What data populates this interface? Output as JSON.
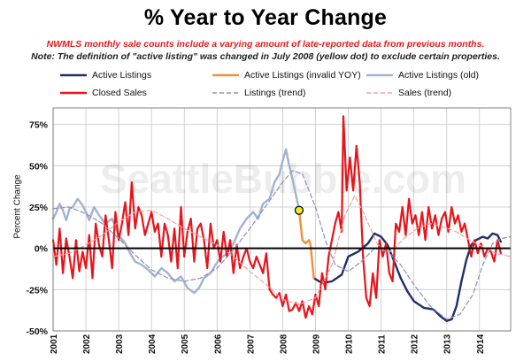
{
  "title": "% Year to Year Change",
  "subtitle_red": "NWMLS monthly sale counts include a varying amount of late-reported  data from previous months.",
  "subtitle_note": "Note: The definition of \"active listing\" was changed in July 2008 (yellow dot) to exclude certain properties.",
  "watermark": "SeattleBubble.com",
  "colors": {
    "active": "#1f2f6b",
    "invalid": "#f0913a",
    "old": "#9fb4cf",
    "closed": "#e8141b",
    "listings_trend": "#8f8fbf",
    "sales_trend": "#f3a0a0",
    "marker": "#f2ea1c",
    "grid": "#c8c8c8"
  },
  "chart_data": {
    "type": "line",
    "ylabel": "Percent Change",
    "ylim": [
      -50,
      85
    ],
    "yticks": [
      75,
      50,
      25,
      0,
      -25,
      -50
    ],
    "ytick_labels": [
      "75%",
      "50%",
      "25%",
      "0%",
      "-25%",
      "-50%"
    ],
    "xlim": [
      2001.0,
      2014.95
    ],
    "xtick_labels": [
      "2001",
      "2002",
      "2003",
      "2004",
      "2005",
      "2006",
      "2007",
      "2008",
      "2009",
      "2010",
      "2011",
      "2012",
      "2013",
      "2014"
    ],
    "marker": {
      "x": 2008.5,
      "y": 23,
      "note": "July 2008"
    },
    "series": [
      {
        "name": "Active Listings",
        "key": "active",
        "points": [
          [
            2008.95,
            -18
          ],
          [
            2009.2,
            -21
          ],
          [
            2009.5,
            -20
          ],
          [
            2009.8,
            -16
          ],
          [
            2010.0,
            -5
          ],
          [
            2010.3,
            -2
          ],
          [
            2010.6,
            3
          ],
          [
            2010.8,
            9
          ],
          [
            2011.0,
            7
          ],
          [
            2011.2,
            2
          ],
          [
            2011.4,
            -8
          ],
          [
            2011.6,
            -18
          ],
          [
            2011.8,
            -26
          ],
          [
            2012.0,
            -32
          ],
          [
            2012.3,
            -36
          ],
          [
            2012.6,
            -37
          ],
          [
            2012.8,
            -41
          ],
          [
            2013.0,
            -44
          ],
          [
            2013.15,
            -43
          ],
          [
            2013.3,
            -35
          ],
          [
            2013.45,
            -20
          ],
          [
            2013.6,
            -7
          ],
          [
            2013.75,
            2
          ],
          [
            2013.9,
            5
          ],
          [
            2014.1,
            7
          ],
          [
            2014.25,
            6
          ],
          [
            2014.4,
            9
          ],
          [
            2014.55,
            8
          ],
          [
            2014.65,
            4
          ]
        ]
      },
      {
        "name": "Active Listings (invalid YOY)",
        "key": "invalid",
        "points": [
          [
            2008.5,
            23
          ],
          [
            2008.55,
            14
          ],
          [
            2008.6,
            5
          ],
          [
            2008.7,
            3
          ],
          [
            2008.8,
            5
          ],
          [
            2008.85,
            2
          ],
          [
            2008.95,
            -18
          ]
        ]
      },
      {
        "name": "Active Listings (old)",
        "key": "old",
        "points": [
          [
            2001.0,
            18
          ],
          [
            2001.1,
            22
          ],
          [
            2001.2,
            27
          ],
          [
            2001.3,
            23
          ],
          [
            2001.4,
            17
          ],
          [
            2001.5,
            24
          ],
          [
            2001.6,
            25
          ],
          [
            2001.75,
            30
          ],
          [
            2001.9,
            26
          ],
          [
            2002.0,
            22
          ],
          [
            2002.1,
            17
          ],
          [
            2002.25,
            25
          ],
          [
            2002.4,
            20
          ],
          [
            2002.6,
            15
          ],
          [
            2002.8,
            18
          ],
          [
            2003.0,
            8
          ],
          [
            2003.2,
            3
          ],
          [
            2003.35,
            -3
          ],
          [
            2003.5,
            -8
          ],
          [
            2003.7,
            -10
          ],
          [
            2003.9,
            -13
          ],
          [
            2004.1,
            -17
          ],
          [
            2004.3,
            -12
          ],
          [
            2004.5,
            -15
          ],
          [
            2004.7,
            -20
          ],
          [
            2004.9,
            -17
          ],
          [
            2005.1,
            -24
          ],
          [
            2005.3,
            -27
          ],
          [
            2005.45,
            -24
          ],
          [
            2005.6,
            -18
          ],
          [
            2005.8,
            -15
          ],
          [
            2005.95,
            -10
          ],
          [
            2006.1,
            -6
          ],
          [
            2006.3,
            -3
          ],
          [
            2006.5,
            3
          ],
          [
            2006.7,
            12
          ],
          [
            2006.9,
            18
          ],
          [
            2007.1,
            22
          ],
          [
            2007.25,
            18
          ],
          [
            2007.4,
            27
          ],
          [
            2007.6,
            30
          ],
          [
            2007.75,
            40
          ],
          [
            2007.9,
            45
          ],
          [
            2008.0,
            53
          ],
          [
            2008.1,
            60
          ],
          [
            2008.2,
            50
          ],
          [
            2008.3,
            42
          ],
          [
            2008.45,
            28
          ],
          [
            2008.5,
            23
          ]
        ]
      },
      {
        "name": "Closed Sales",
        "key": "closed",
        "points": [
          [
            2001.0,
            5
          ],
          [
            2001.1,
            -10
          ],
          [
            2001.2,
            12
          ],
          [
            2001.3,
            -15
          ],
          [
            2001.4,
            6
          ],
          [
            2001.5,
            -5
          ],
          [
            2001.6,
            -18
          ],
          [
            2001.7,
            5
          ],
          [
            2001.8,
            -14
          ],
          [
            2001.9,
            -2
          ],
          [
            2002.0,
            -12
          ],
          [
            2002.1,
            8
          ],
          [
            2002.2,
            -18
          ],
          [
            2002.3,
            15
          ],
          [
            2002.4,
            2
          ],
          [
            2002.5,
            -5
          ],
          [
            2002.6,
            20
          ],
          [
            2002.7,
            5
          ],
          [
            2002.8,
            -12
          ],
          [
            2002.9,
            22
          ],
          [
            2003.0,
            5
          ],
          [
            2003.1,
            15
          ],
          [
            2003.2,
            28
          ],
          [
            2003.3,
            8
          ],
          [
            2003.4,
            40
          ],
          [
            2003.5,
            12
          ],
          [
            2003.6,
            25
          ],
          [
            2003.7,
            20
          ],
          [
            2003.8,
            8
          ],
          [
            2003.9,
            15
          ],
          [
            2004.0,
            22
          ],
          [
            2004.1,
            10
          ],
          [
            2004.2,
            15
          ],
          [
            2004.3,
            -5
          ],
          [
            2004.4,
            15
          ],
          [
            2004.5,
            8
          ],
          [
            2004.6,
            -8
          ],
          [
            2004.7,
            12
          ],
          [
            2004.8,
            -12
          ],
          [
            2004.9,
            25
          ],
          [
            2005.0,
            -5
          ],
          [
            2005.1,
            10
          ],
          [
            2005.2,
            18
          ],
          [
            2005.3,
            -8
          ],
          [
            2005.4,
            12
          ],
          [
            2005.5,
            15
          ],
          [
            2005.6,
            5
          ],
          [
            2005.7,
            -12
          ],
          [
            2005.8,
            15
          ],
          [
            2005.9,
            0
          ],
          [
            2006.0,
            5
          ],
          [
            2006.1,
            -8
          ],
          [
            2006.2,
            10
          ],
          [
            2006.3,
            -5
          ],
          [
            2006.4,
            5
          ],
          [
            2006.5,
            -15
          ],
          [
            2006.6,
            2
          ],
          [
            2006.7,
            -12
          ],
          [
            2006.8,
            -5
          ],
          [
            2006.9,
            0
          ],
          [
            2007.0,
            -8
          ],
          [
            2007.1,
            -12
          ],
          [
            2007.2,
            -5
          ],
          [
            2007.3,
            -10
          ],
          [
            2007.4,
            -15
          ],
          [
            2007.5,
            -3
          ],
          [
            2007.6,
            -25
          ],
          [
            2007.7,
            -28
          ],
          [
            2007.8,
            -30
          ],
          [
            2007.9,
            -27
          ],
          [
            2008.0,
            -35
          ],
          [
            2008.1,
            -28
          ],
          [
            2008.2,
            -38
          ],
          [
            2008.3,
            -37
          ],
          [
            2008.4,
            -33
          ],
          [
            2008.5,
            -38
          ],
          [
            2008.6,
            -32
          ],
          [
            2008.7,
            -42
          ],
          [
            2008.8,
            -35
          ],
          [
            2008.9,
            -40
          ],
          [
            2009.0,
            -28
          ],
          [
            2009.1,
            -35
          ],
          [
            2009.2,
            -15
          ],
          [
            2009.3,
            -25
          ],
          [
            2009.4,
            -5
          ],
          [
            2009.5,
            5
          ],
          [
            2009.6,
            15
          ],
          [
            2009.7,
            22
          ],
          [
            2009.8,
            10
          ],
          [
            2009.85,
            80
          ],
          [
            2009.95,
            35
          ],
          [
            2010.05,
            55
          ],
          [
            2010.15,
            35
          ],
          [
            2010.25,
            62
          ],
          [
            2010.35,
            40
          ],
          [
            2010.45,
            -5
          ],
          [
            2010.55,
            -30
          ],
          [
            2010.65,
            -35
          ],
          [
            2010.75,
            -15
          ],
          [
            2010.85,
            -30
          ],
          [
            2010.95,
            5
          ],
          [
            2011.05,
            -5
          ],
          [
            2011.15,
            3
          ],
          [
            2011.25,
            -15
          ],
          [
            2011.35,
            -20
          ],
          [
            2011.45,
            15
          ],
          [
            2011.55,
            10
          ],
          [
            2011.65,
            25
          ],
          [
            2011.75,
            8
          ],
          [
            2011.85,
            30
          ],
          [
            2011.95,
            15
          ],
          [
            2012.05,
            20
          ],
          [
            2012.15,
            8
          ],
          [
            2012.25,
            22
          ],
          [
            2012.35,
            5
          ],
          [
            2012.45,
            25
          ],
          [
            2012.55,
            12
          ],
          [
            2012.65,
            20
          ],
          [
            2012.75,
            8
          ],
          [
            2012.85,
            18
          ],
          [
            2012.95,
            22
          ],
          [
            2013.05,
            10
          ],
          [
            2013.15,
            25
          ],
          [
            2013.25,
            15
          ],
          [
            2013.35,
            20
          ],
          [
            2013.45,
            10
          ],
          [
            2013.55,
            15
          ],
          [
            2013.65,
            5
          ],
          [
            2013.75,
            -5
          ],
          [
            2013.85,
            5
          ],
          [
            2013.95,
            -3
          ],
          [
            2014.05,
            3
          ],
          [
            2014.15,
            -5
          ],
          [
            2014.25,
            0
          ],
          [
            2014.35,
            -2
          ],
          [
            2014.45,
            -8
          ],
          [
            2014.55,
            5
          ],
          [
            2014.65,
            -3
          ]
        ]
      },
      {
        "name": "Listings (trend)",
        "key": "listings_trend",
        "dashed": true,
        "points": [
          [
            2001.0,
            24
          ],
          [
            2001.5,
            25
          ],
          [
            2002.0,
            21
          ],
          [
            2002.5,
            15
          ],
          [
            2003.0,
            6
          ],
          [
            2003.5,
            -4
          ],
          [
            2004.0,
            -13
          ],
          [
            2004.5,
            -18
          ],
          [
            2005.0,
            -20
          ],
          [
            2005.5,
            -18
          ],
          [
            2006.0,
            -12
          ],
          [
            2006.5,
            -1
          ],
          [
            2007.0,
            12
          ],
          [
            2007.5,
            26
          ],
          [
            2008.0,
            40
          ],
          [
            2008.3,
            47
          ],
          [
            2008.6,
            45
          ],
          [
            2009.0,
            25
          ],
          [
            2009.3,
            5
          ],
          [
            2009.6,
            -10
          ],
          [
            2010.0,
            -14
          ],
          [
            2010.4,
            -8
          ],
          [
            2010.8,
            0
          ],
          [
            2011.2,
            -2
          ],
          [
            2011.6,
            -10
          ],
          [
            2012.0,
            -22
          ],
          [
            2012.5,
            -35
          ],
          [
            2013.0,
            -43
          ],
          [
            2013.4,
            -40
          ],
          [
            2013.8,
            -28
          ],
          [
            2014.1,
            -10
          ],
          [
            2014.4,
            3
          ],
          [
            2014.7,
            6
          ],
          [
            2014.95,
            7
          ]
        ]
      },
      {
        "name": "Sales (trend)",
        "key": "sales_trend",
        "dashed": true,
        "points": [
          [
            2001.0,
            -5
          ],
          [
            2001.5,
            -3
          ],
          [
            2002.0,
            2
          ],
          [
            2002.5,
            8
          ],
          [
            2003.0,
            16
          ],
          [
            2003.5,
            22
          ],
          [
            2004.0,
            23
          ],
          [
            2004.5,
            18
          ],
          [
            2005.0,
            12
          ],
          [
            2005.5,
            7
          ],
          [
            2006.0,
            2
          ],
          [
            2006.5,
            -5
          ],
          [
            2007.0,
            -14
          ],
          [
            2007.5,
            -22
          ],
          [
            2008.0,
            -31
          ],
          [
            2008.5,
            -34
          ],
          [
            2009.0,
            -30
          ],
          [
            2009.5,
            -10
          ],
          [
            2009.9,
            20
          ],
          [
            2010.2,
            32
          ],
          [
            2010.5,
            20
          ],
          [
            2010.9,
            2
          ],
          [
            2011.3,
            -2
          ],
          [
            2011.7,
            6
          ],
          [
            2012.1,
            12
          ],
          [
            2012.5,
            15
          ],
          [
            2012.9,
            13
          ],
          [
            2013.3,
            10
          ],
          [
            2013.7,
            5
          ],
          [
            2014.1,
            1
          ],
          [
            2014.5,
            -3
          ],
          [
            2014.95,
            -5
          ]
        ]
      }
    ]
  }
}
